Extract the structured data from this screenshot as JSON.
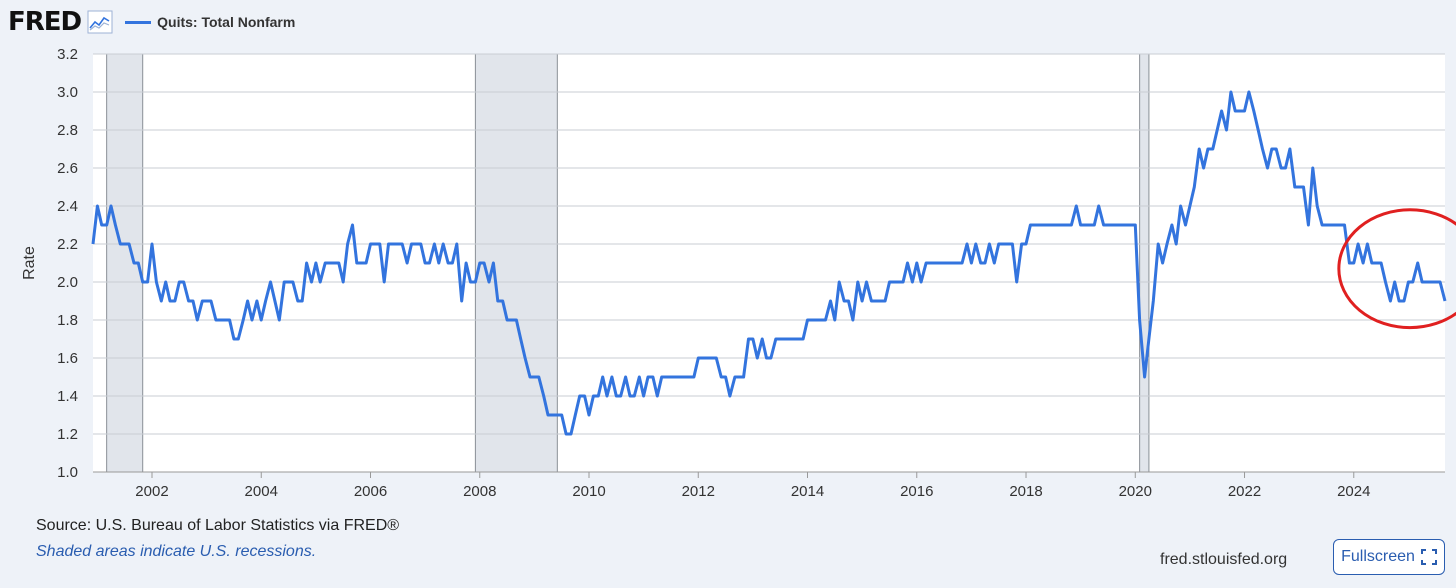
{
  "header": {
    "logo": "FRED",
    "legend_label": "Quits: Total Nonfarm",
    "series_color": "#3374de"
  },
  "footer": {
    "source": "Source: U.S. Bureau of Labor Statistics via FRED®",
    "note": "Shaded areas indicate U.S. recessions.",
    "site": "fred.stlouisfed.org",
    "fullscreen_label": "Fullscreen"
  },
  "chart_data": {
    "type": "line",
    "ylabel": "Rate",
    "ylim": [
      1.0,
      3.2
    ],
    "yticks": [
      "1.0",
      "1.2",
      "1.4",
      "1.6",
      "1.8",
      "2.0",
      "2.2",
      "2.4",
      "2.6",
      "2.8",
      "3.0",
      "3.2"
    ],
    "xlim": [
      2000.92,
      2025.67
    ],
    "xticks": [
      "2002",
      "2004",
      "2006",
      "2008",
      "2010",
      "2012",
      "2014",
      "2016",
      "2018",
      "2020",
      "2022",
      "2024"
    ],
    "grid": true,
    "recessions": [
      [
        2001.17,
        2001.83
      ],
      [
        2007.92,
        2009.42
      ],
      [
        2020.08,
        2020.25
      ]
    ],
    "annotation": {
      "type": "circle",
      "color": "#e02020",
      "x_range": [
        2023.8,
        2025.67
      ],
      "y_range": [
        1.76,
        2.38
      ]
    },
    "series": [
      {
        "name": "Quits: Total Nonfarm",
        "color": "#3374de",
        "points": [
          [
            2000.92,
            2.2
          ],
          [
            2001.0,
            2.4
          ],
          [
            2001.08,
            2.3
          ],
          [
            2001.17,
            2.3
          ],
          [
            2001.25,
            2.4
          ],
          [
            2001.33,
            2.3
          ],
          [
            2001.42,
            2.2
          ],
          [
            2001.5,
            2.2
          ],
          [
            2001.58,
            2.2
          ],
          [
            2001.67,
            2.1
          ],
          [
            2001.75,
            2.1
          ],
          [
            2001.83,
            2.0
          ],
          [
            2001.92,
            2.0
          ],
          [
            2002.0,
            2.2
          ],
          [
            2002.08,
            2.0
          ],
          [
            2002.17,
            1.9
          ],
          [
            2002.25,
            2.0
          ],
          [
            2002.33,
            1.9
          ],
          [
            2002.42,
            1.9
          ],
          [
            2002.5,
            2.0
          ],
          [
            2002.58,
            2.0
          ],
          [
            2002.67,
            1.9
          ],
          [
            2002.75,
            1.9
          ],
          [
            2002.83,
            1.8
          ],
          [
            2002.92,
            1.9
          ],
          [
            2003.0,
            1.9
          ],
          [
            2003.08,
            1.9
          ],
          [
            2003.17,
            1.8
          ],
          [
            2003.25,
            1.8
          ],
          [
            2003.33,
            1.8
          ],
          [
            2003.42,
            1.8
          ],
          [
            2003.5,
            1.7
          ],
          [
            2003.58,
            1.7
          ],
          [
            2003.67,
            1.8
          ],
          [
            2003.75,
            1.9
          ],
          [
            2003.83,
            1.8
          ],
          [
            2003.92,
            1.9
          ],
          [
            2004.0,
            1.8
          ],
          [
            2004.08,
            1.9
          ],
          [
            2004.17,
            2.0
          ],
          [
            2004.25,
            1.9
          ],
          [
            2004.33,
            1.8
          ],
          [
            2004.42,
            2.0
          ],
          [
            2004.5,
            2.0
          ],
          [
            2004.58,
            2.0
          ],
          [
            2004.67,
            1.9
          ],
          [
            2004.75,
            1.9
          ],
          [
            2004.83,
            2.1
          ],
          [
            2004.92,
            2.0
          ],
          [
            2005.0,
            2.1
          ],
          [
            2005.08,
            2.0
          ],
          [
            2005.17,
            2.1
          ],
          [
            2005.25,
            2.1
          ],
          [
            2005.33,
            2.1
          ],
          [
            2005.42,
            2.1
          ],
          [
            2005.5,
            2.0
          ],
          [
            2005.58,
            2.2
          ],
          [
            2005.67,
            2.3
          ],
          [
            2005.75,
            2.1
          ],
          [
            2005.83,
            2.1
          ],
          [
            2005.92,
            2.1
          ],
          [
            2006.0,
            2.2
          ],
          [
            2006.08,
            2.2
          ],
          [
            2006.17,
            2.2
          ],
          [
            2006.25,
            2.0
          ],
          [
            2006.33,
            2.2
          ],
          [
            2006.42,
            2.2
          ],
          [
            2006.5,
            2.2
          ],
          [
            2006.58,
            2.2
          ],
          [
            2006.67,
            2.1
          ],
          [
            2006.75,
            2.2
          ],
          [
            2006.83,
            2.2
          ],
          [
            2006.92,
            2.2
          ],
          [
            2007.0,
            2.1
          ],
          [
            2007.08,
            2.1
          ],
          [
            2007.17,
            2.2
          ],
          [
            2007.25,
            2.1
          ],
          [
            2007.33,
            2.2
          ],
          [
            2007.42,
            2.1
          ],
          [
            2007.5,
            2.1
          ],
          [
            2007.58,
            2.2
          ],
          [
            2007.67,
            1.9
          ],
          [
            2007.75,
            2.1
          ],
          [
            2007.83,
            2.0
          ],
          [
            2007.92,
            2.0
          ],
          [
            2008.0,
            2.1
          ],
          [
            2008.08,
            2.1
          ],
          [
            2008.17,
            2.0
          ],
          [
            2008.25,
            2.1
          ],
          [
            2008.33,
            1.9
          ],
          [
            2008.42,
            1.9
          ],
          [
            2008.5,
            1.8
          ],
          [
            2008.58,
            1.8
          ],
          [
            2008.67,
            1.8
          ],
          [
            2008.75,
            1.7
          ],
          [
            2008.83,
            1.6
          ],
          [
            2008.92,
            1.5
          ],
          [
            2009.0,
            1.5
          ],
          [
            2009.08,
            1.5
          ],
          [
            2009.17,
            1.4
          ],
          [
            2009.25,
            1.3
          ],
          [
            2009.33,
            1.3
          ],
          [
            2009.42,
            1.3
          ],
          [
            2009.5,
            1.3
          ],
          [
            2009.58,
            1.2
          ],
          [
            2009.67,
            1.2
          ],
          [
            2009.75,
            1.3
          ],
          [
            2009.83,
            1.4
          ],
          [
            2009.92,
            1.4
          ],
          [
            2010.0,
            1.3
          ],
          [
            2010.08,
            1.4
          ],
          [
            2010.17,
            1.4
          ],
          [
            2010.25,
            1.5
          ],
          [
            2010.33,
            1.4
          ],
          [
            2010.42,
            1.5
          ],
          [
            2010.5,
            1.4
          ],
          [
            2010.58,
            1.4
          ],
          [
            2010.67,
            1.5
          ],
          [
            2010.75,
            1.4
          ],
          [
            2010.83,
            1.4
          ],
          [
            2010.92,
            1.5
          ],
          [
            2011.0,
            1.4
          ],
          [
            2011.08,
            1.5
          ],
          [
            2011.17,
            1.5
          ],
          [
            2011.25,
            1.4
          ],
          [
            2011.33,
            1.5
          ],
          [
            2011.42,
            1.5
          ],
          [
            2011.5,
            1.5
          ],
          [
            2011.58,
            1.5
          ],
          [
            2011.67,
            1.5
          ],
          [
            2011.75,
            1.5
          ],
          [
            2011.83,
            1.5
          ],
          [
            2011.92,
            1.5
          ],
          [
            2012.0,
            1.6
          ],
          [
            2012.08,
            1.6
          ],
          [
            2012.17,
            1.6
          ],
          [
            2012.25,
            1.6
          ],
          [
            2012.33,
            1.6
          ],
          [
            2012.42,
            1.5
          ],
          [
            2012.5,
            1.5
          ],
          [
            2012.58,
            1.4
          ],
          [
            2012.67,
            1.5
          ],
          [
            2012.75,
            1.5
          ],
          [
            2012.83,
            1.5
          ],
          [
            2012.92,
            1.7
          ],
          [
            2013.0,
            1.7
          ],
          [
            2013.08,
            1.6
          ],
          [
            2013.17,
            1.7
          ],
          [
            2013.25,
            1.6
          ],
          [
            2013.33,
            1.6
          ],
          [
            2013.42,
            1.7
          ],
          [
            2013.5,
            1.7
          ],
          [
            2013.58,
            1.7
          ],
          [
            2013.67,
            1.7
          ],
          [
            2013.75,
            1.7
          ],
          [
            2013.83,
            1.7
          ],
          [
            2013.92,
            1.7
          ],
          [
            2014.0,
            1.8
          ],
          [
            2014.08,
            1.8
          ],
          [
            2014.17,
            1.8
          ],
          [
            2014.25,
            1.8
          ],
          [
            2014.33,
            1.8
          ],
          [
            2014.42,
            1.9
          ],
          [
            2014.5,
            1.8
          ],
          [
            2014.58,
            2.0
          ],
          [
            2014.67,
            1.9
          ],
          [
            2014.75,
            1.9
          ],
          [
            2014.83,
            1.8
          ],
          [
            2014.92,
            2.0
          ],
          [
            2015.0,
            1.9
          ],
          [
            2015.08,
            2.0
          ],
          [
            2015.17,
            1.9
          ],
          [
            2015.25,
            1.9
          ],
          [
            2015.33,
            1.9
          ],
          [
            2015.42,
            1.9
          ],
          [
            2015.5,
            2.0
          ],
          [
            2015.58,
            2.0
          ],
          [
            2015.67,
            2.0
          ],
          [
            2015.75,
            2.0
          ],
          [
            2015.83,
            2.1
          ],
          [
            2015.92,
            2.0
          ],
          [
            2016.0,
            2.1
          ],
          [
            2016.08,
            2.0
          ],
          [
            2016.17,
            2.1
          ],
          [
            2016.25,
            2.1
          ],
          [
            2016.33,
            2.1
          ],
          [
            2016.42,
            2.1
          ],
          [
            2016.5,
            2.1
          ],
          [
            2016.58,
            2.1
          ],
          [
            2016.67,
            2.1
          ],
          [
            2016.75,
            2.1
          ],
          [
            2016.83,
            2.1
          ],
          [
            2016.92,
            2.2
          ],
          [
            2017.0,
            2.1
          ],
          [
            2017.08,
            2.2
          ],
          [
            2017.17,
            2.1
          ],
          [
            2017.25,
            2.1
          ],
          [
            2017.33,
            2.2
          ],
          [
            2017.42,
            2.1
          ],
          [
            2017.5,
            2.2
          ],
          [
            2017.58,
            2.2
          ],
          [
            2017.67,
            2.2
          ],
          [
            2017.75,
            2.2
          ],
          [
            2017.83,
            2.0
          ],
          [
            2017.92,
            2.2
          ],
          [
            2018.0,
            2.2
          ],
          [
            2018.08,
            2.3
          ],
          [
            2018.17,
            2.3
          ],
          [
            2018.25,
            2.3
          ],
          [
            2018.33,
            2.3
          ],
          [
            2018.42,
            2.3
          ],
          [
            2018.5,
            2.3
          ],
          [
            2018.58,
            2.3
          ],
          [
            2018.67,
            2.3
          ],
          [
            2018.75,
            2.3
          ],
          [
            2018.83,
            2.3
          ],
          [
            2018.92,
            2.4
          ],
          [
            2019.0,
            2.3
          ],
          [
            2019.08,
            2.3
          ],
          [
            2019.17,
            2.3
          ],
          [
            2019.25,
            2.3
          ],
          [
            2019.33,
            2.4
          ],
          [
            2019.42,
            2.3
          ],
          [
            2019.5,
            2.3
          ],
          [
            2019.58,
            2.3
          ],
          [
            2019.67,
            2.3
          ],
          [
            2019.75,
            2.3
          ],
          [
            2019.83,
            2.3
          ],
          [
            2019.92,
            2.3
          ],
          [
            2020.0,
            2.3
          ],
          [
            2020.08,
            1.8
          ],
          [
            2020.17,
            1.5
          ],
          [
            2020.25,
            1.7
          ],
          [
            2020.33,
            1.9
          ],
          [
            2020.42,
            2.2
          ],
          [
            2020.5,
            2.1
          ],
          [
            2020.58,
            2.2
          ],
          [
            2020.67,
            2.3
          ],
          [
            2020.75,
            2.2
          ],
          [
            2020.83,
            2.4
          ],
          [
            2020.92,
            2.3
          ],
          [
            2021.0,
            2.4
          ],
          [
            2021.08,
            2.5
          ],
          [
            2021.17,
            2.7
          ],
          [
            2021.25,
            2.6
          ],
          [
            2021.33,
            2.7
          ],
          [
            2021.42,
            2.7
          ],
          [
            2021.5,
            2.8
          ],
          [
            2021.58,
            2.9
          ],
          [
            2021.67,
            2.8
          ],
          [
            2021.75,
            3.0
          ],
          [
            2021.83,
            2.9
          ],
          [
            2021.92,
            2.9
          ],
          [
            2022.0,
            2.9
          ],
          [
            2022.08,
            3.0
          ],
          [
            2022.17,
            2.9
          ],
          [
            2022.25,
            2.8
          ],
          [
            2022.33,
            2.7
          ],
          [
            2022.42,
            2.6
          ],
          [
            2022.5,
            2.7
          ],
          [
            2022.58,
            2.7
          ],
          [
            2022.67,
            2.6
          ],
          [
            2022.75,
            2.6
          ],
          [
            2022.83,
            2.7
          ],
          [
            2022.92,
            2.5
          ],
          [
            2023.0,
            2.5
          ],
          [
            2023.08,
            2.5
          ],
          [
            2023.17,
            2.3
          ],
          [
            2023.25,
            2.6
          ],
          [
            2023.33,
            2.4
          ],
          [
            2023.42,
            2.3
          ],
          [
            2023.5,
            2.3
          ],
          [
            2023.58,
            2.3
          ],
          [
            2023.67,
            2.3
          ],
          [
            2023.75,
            2.3
          ],
          [
            2023.83,
            2.3
          ],
          [
            2023.92,
            2.1
          ],
          [
            2024.0,
            2.1
          ],
          [
            2024.08,
            2.2
          ],
          [
            2024.17,
            2.1
          ],
          [
            2024.25,
            2.2
          ],
          [
            2024.33,
            2.1
          ],
          [
            2024.42,
            2.1
          ],
          [
            2024.5,
            2.1
          ],
          [
            2024.58,
            2.0
          ],
          [
            2024.67,
            1.9
          ],
          [
            2024.75,
            2.0
          ],
          [
            2024.83,
            1.9
          ],
          [
            2024.92,
            1.9
          ],
          [
            2025.0,
            2.0
          ],
          [
            2025.08,
            2.0
          ],
          [
            2025.17,
            2.1
          ],
          [
            2025.25,
            2.0
          ],
          [
            2025.33,
            2.0
          ],
          [
            2025.42,
            2.0
          ],
          [
            2025.5,
            2.0
          ],
          [
            2025.58,
            2.0
          ],
          [
            2025.67,
            1.9
          ]
        ]
      }
    ]
  }
}
